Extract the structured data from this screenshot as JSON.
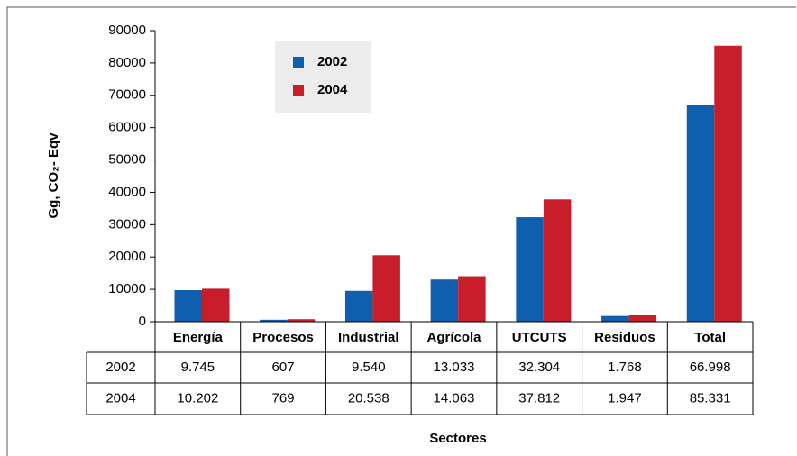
{
  "chart_data": {
    "type": "bar",
    "y_label": "Gg, CO₂- Eqv",
    "x_label": "Sectores",
    "categories": [
      "Energía",
      "Procesos",
      "Industrial",
      "Agrícola",
      "UTCUTS",
      "Residuos",
      "Total"
    ],
    "series": [
      {
        "name": "2002",
        "color": "#0f5fae",
        "values": [
          9745,
          607,
          9540,
          13033,
          32304,
          1768,
          66998
        ],
        "value_labels": [
          "9.745",
          "607",
          "9.540",
          "13.033",
          "32.304",
          "1.768",
          "66.998"
        ]
      },
      {
        "name": "2004",
        "color": "#c81e2b",
        "values": [
          10202,
          769,
          20538,
          14063,
          37812,
          1947,
          85331
        ],
        "value_labels": [
          "10.202",
          "769",
          "20.538",
          "14.063",
          "37.812",
          "1.947",
          "85.331"
        ]
      }
    ],
    "ylim": [
      0,
      90000
    ],
    "yticks": [
      0,
      10000,
      20000,
      30000,
      40000,
      50000,
      60000,
      70000,
      80000,
      90000
    ],
    "legend": "top-left"
  }
}
